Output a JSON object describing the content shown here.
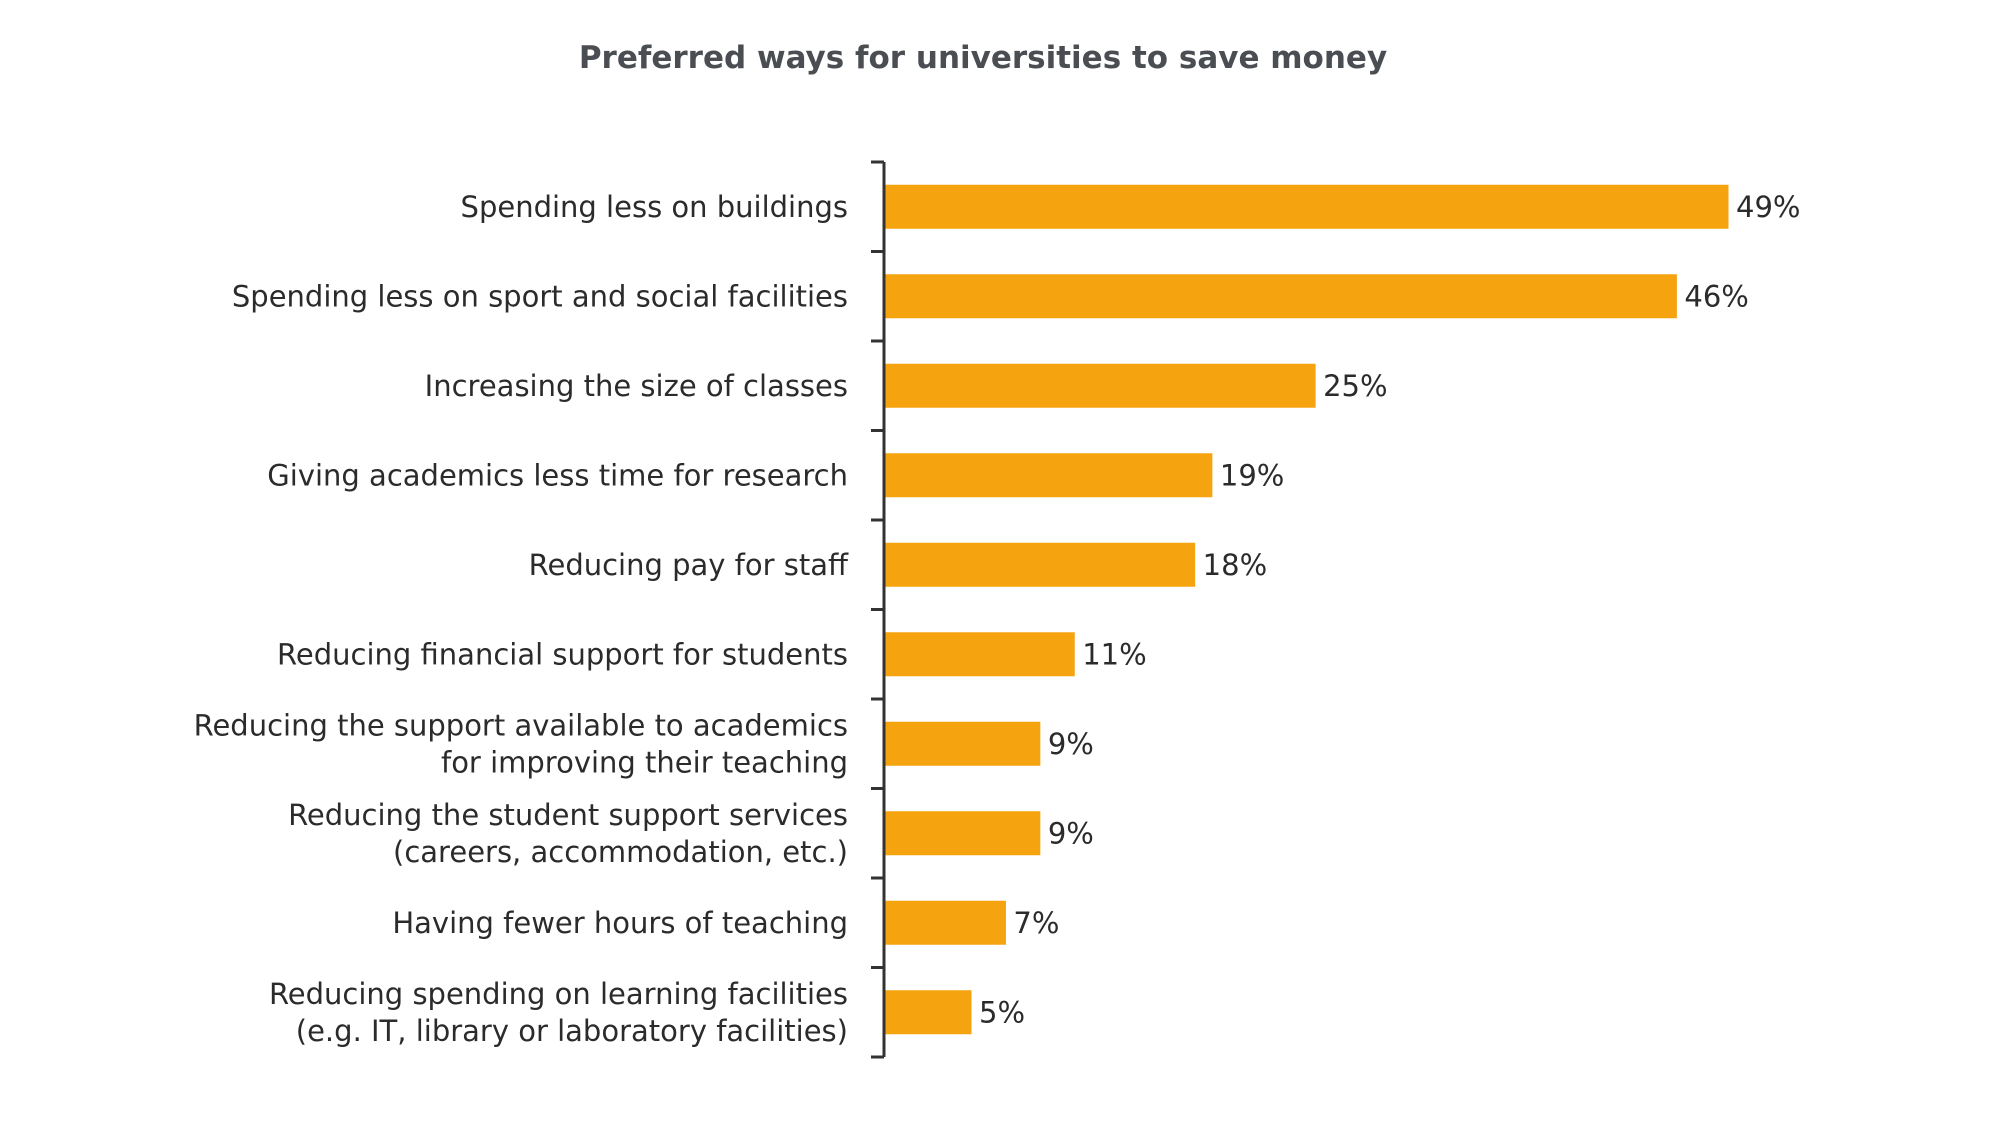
{
  "chart_data": {
    "type": "bar",
    "orientation": "horizontal",
    "title": "Preferred ways for universities to save money",
    "xlabel": "",
    "ylabel": "",
    "value_suffix": "%",
    "xlim": [
      0,
      49
    ],
    "grid": false,
    "legend": "none",
    "bar_color": "#F5A30F",
    "categories": [
      [
        "Spending less on buildings"
      ],
      [
        "Spending less on sport and social facilities"
      ],
      [
        "Increasing the size of classes"
      ],
      [
        "Giving academics less time for research"
      ],
      [
        "Reducing pay for staff"
      ],
      [
        "Reducing financial support for students"
      ],
      [
        "Reducing the support available to academics",
        "for improving their teaching"
      ],
      [
        "Reducing the student support services",
        "(careers, accommodation, etc.)"
      ],
      [
        "Having fewer hours of teaching"
      ],
      [
        "Reducing spending on learning facilities",
        "(e.g. IT, library or laboratory facilities)"
      ]
    ],
    "values": [
      49,
      46,
      25,
      19,
      18,
      11,
      9,
      9,
      7,
      5
    ],
    "value_labels": [
      "49%",
      "46%",
      "25%",
      "19%",
      "18%",
      "11%",
      "9%",
      "9%",
      "7%",
      "5%"
    ]
  }
}
